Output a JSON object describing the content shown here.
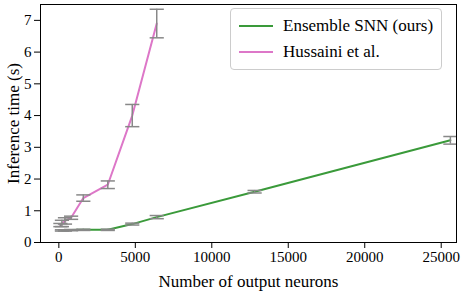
{
  "chart_data": {
    "type": "line",
    "x_label": "Number of output neurons",
    "y_label": "Inference time (s)",
    "xlim": [
      -1200,
      26000
    ],
    "xticks": [
      0,
      5000,
      10000,
      15000,
      20000,
      25000
    ],
    "ylim": [
      0,
      7.5
    ],
    "yticks": [
      0,
      1,
      2,
      3,
      4,
      5,
      6,
      7
    ],
    "grid": false,
    "legend": "upper right",
    "series": [
      {
        "name": "Ensemble SNN (ours)",
        "color": "#3a9a3a",
        "x": [
          200,
          400,
          800,
          1600,
          3200,
          4800,
          6400,
          12800,
          25600
        ],
        "values": [
          0.38,
          0.38,
          0.39,
          0.4,
          0.4,
          0.58,
          0.8,
          1.6,
          3.22
        ],
        "errors": [
          0.02,
          0.02,
          0.02,
          0.02,
          0.02,
          0.03,
          0.05,
          0.04,
          0.12
        ]
      },
      {
        "name": "Hussaini et al.",
        "color": "#dd77c8",
        "x": [
          100,
          200,
          400,
          800,
          1600,
          3200,
          4800,
          6400
        ],
        "values": [
          0.55,
          0.6,
          0.68,
          0.78,
          1.4,
          1.82,
          4.0,
          6.9
        ],
        "errors": [
          0.05,
          0.1,
          0.1,
          0.05,
          0.1,
          0.12,
          0.35,
          0.45
        ]
      }
    ]
  }
}
